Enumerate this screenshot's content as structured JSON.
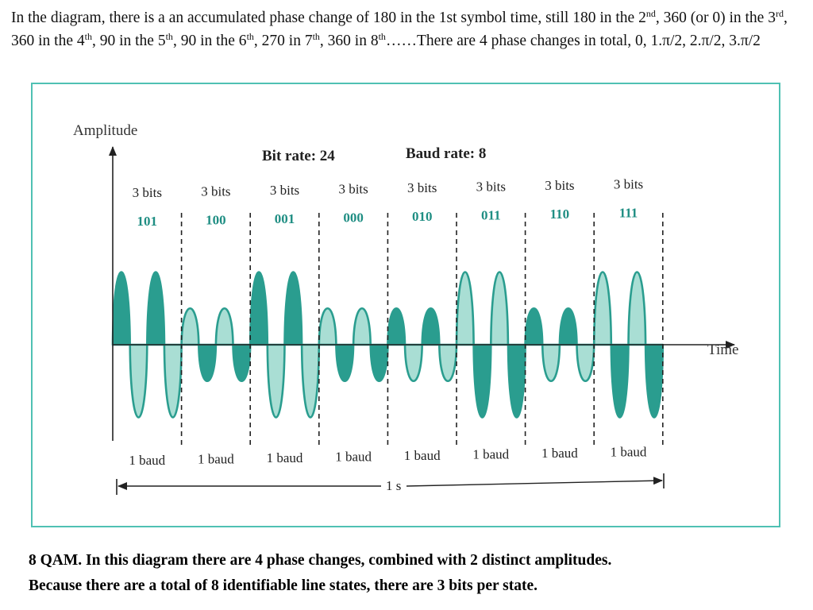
{
  "intro": {
    "p1": "In the diagram, there is a an accumulated phase change of 180 in the 1st symbol time, still 180 in the 2",
    "s1": "nd",
    "p2": ", 360 (or 0) in the 3",
    "s2": "rd",
    "p3": ", 360 in the 4",
    "s3": "th",
    "p4": ", 90  in the 5",
    "s4": "th",
    "p5": ", 90 in the 6",
    "s5": "th",
    "p6": ", 270  in 7",
    "s6": "th",
    "p7": ", 360 in 8",
    "s7": "th",
    "p8": "……There are 4 phase changes in total, 0, 1.π/2, 2.π/2, 3.π/2"
  },
  "figure": {
    "amplitude_label": "Amplitude",
    "time_label": "Time",
    "bit_rate_label": "Bit rate: 24",
    "baud_rate_label": "Baud rate: 8",
    "duration_label": "1 s",
    "symbols": [
      {
        "bits_label": "3 bits",
        "code": "101",
        "baud_label": "1 baud",
        "amplitude": 1.0
      },
      {
        "bits_label": "3 bits",
        "code": "100",
        "baud_label": "1 baud",
        "amplitude": 0.5
      },
      {
        "bits_label": "3 bits",
        "code": "001",
        "baud_label": "1 baud",
        "amplitude": 1.0
      },
      {
        "bits_label": "3 bits",
        "code": "000",
        "baud_label": "1 baud",
        "amplitude": 0.5
      },
      {
        "bits_label": "3 bits",
        "code": "010",
        "baud_label": "1 baud",
        "amplitude": 0.5
      },
      {
        "bits_label": "3 bits",
        "code": "011",
        "baud_label": "1 baud",
        "amplitude": 1.0
      },
      {
        "bits_label": "3 bits",
        "code": "110",
        "baud_label": "1 baud",
        "amplitude": 0.5
      },
      {
        "bits_label": "3 bits",
        "code": "111",
        "baud_label": "1 baud",
        "amplitude": 1.0
      }
    ],
    "colors": {
      "frame": "#4fc1b3",
      "wave_stroke": "#2a9d8f",
      "wave_fill_dark": "#2a9d8f",
      "wave_fill_light": "#a9ded4",
      "code_text": "#1f8e83",
      "axis": "#222222"
    }
  },
  "caption": {
    "line1": "8 QAM. In this diagram there are 4 phase changes, combined with 2 distinct amplitudes.",
    "line2": "Because there are a total of 8 identifiable line states, there are 3 bits per state."
  }
}
